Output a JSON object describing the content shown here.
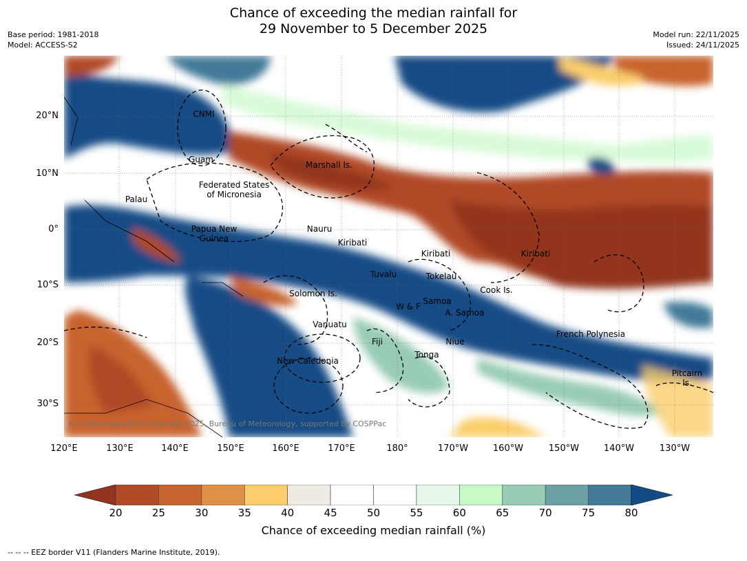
{
  "title_line1": "Chance of exceeding the median rainfall for",
  "title_line2": "29 November to 5 December 2025",
  "base_period": "Base period: 1981-2018",
  "model": "Model: ACCESS-S2",
  "model_run": "Model run: 22/11/2025",
  "issued": "Issued: 24/11/2025",
  "lat_labels": [
    "20°N",
    "10°N",
    "0°",
    "10°S",
    "20°S",
    "30°S"
  ],
  "lon_labels": [
    "120°E",
    "130°E",
    "140°E",
    "150°E",
    "160°E",
    "170°E",
    "180°",
    "170°W",
    "160°W",
    "150°W",
    "140°W",
    "130°W"
  ],
  "regions": {
    "cnmi": "CNMI",
    "guam": "Guam",
    "marshall": "Marshall Is.",
    "fsm1": "Federated States",
    "fsm2": "of Micronesia",
    "palau": "Palau",
    "png1": "Papua New",
    "png2": "Guinea",
    "nauru": "Nauru",
    "kiribati_w": "Kiribati",
    "kiribati_c": "Kiribati",
    "kiribati_e": "Kiribati",
    "tuvalu": "Tuvalu",
    "tokelau": "Tokelau",
    "cook": "Cook Is.",
    "solomon": "Solomon Is.",
    "samoa": "Samoa",
    "wf": "W & F",
    "asamoa": "A. Samoa",
    "vanuatu": "Vanuatu",
    "fiji": "Fiji",
    "niue": "Niue",
    "tonga": "Tonga",
    "frenchpoly": "French Polynesia",
    "newcal": "New Caledonia",
    "pitcairn1": "Pitcairn",
    "pitcairn2": "Is."
  },
  "copyright": "© Commonwealth of Australia 2025, Bureau of Meteorology, supported by COSPPac",
  "colorbar": {
    "ticks": [
      "20",
      "25",
      "30",
      "35",
      "40",
      "45",
      "50",
      "55",
      "60",
      "65",
      "70",
      "75",
      "80"
    ],
    "colors": [
      "#b04a27",
      "#c8642f",
      "#e09046",
      "#fbcd6c",
      "#eeebe3",
      "#ffffff",
      "#ffffff",
      "#e6f6e8",
      "#c8fac8",
      "#98ccb4",
      "#6aa2a6",
      "#427a98"
    ],
    "low_color": "#92341f",
    "high_color": "#124b85",
    "label": "Chance of exceeding median rainfall (%)"
  },
  "footnote": "--  --  -- EEZ border V11 (Flanders Marine Institute, 2019)."
}
